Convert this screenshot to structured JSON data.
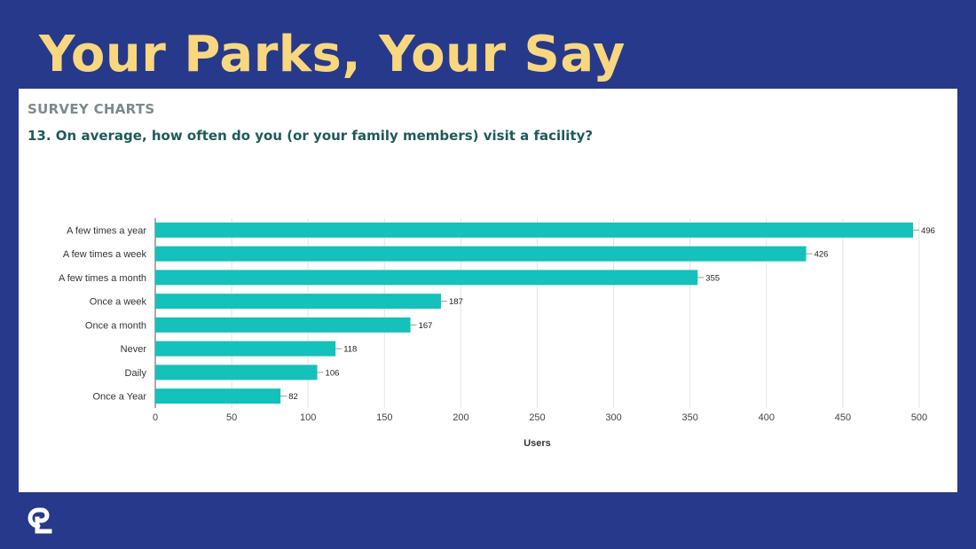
{
  "slide": {
    "title": "Your Parks, Your Say",
    "section_label": "SURVEY CHARTS",
    "question": "13. On average, how often do you (or your family members) visit a facility?",
    "logo_icon": "cpl-logo-icon"
  },
  "colors": {
    "background": "#27398a",
    "title": "#f9d77e",
    "bar": "#14c1bb",
    "question": "#1f5a59",
    "section_label": "#7d8a8d"
  },
  "chart_data": {
    "type": "bar",
    "orientation": "horizontal",
    "categories": [
      "A few times a year",
      "A few times a week",
      "A few times a month",
      "Once a week",
      "Once a month",
      "Never",
      "Daily",
      "Once a Year"
    ],
    "values": [
      496,
      426,
      355,
      187,
      167,
      118,
      106,
      82
    ],
    "data_labels": [
      "496",
      "426",
      "355",
      "187",
      "167",
      "118",
      "106",
      "82"
    ],
    "xlabel": "Users",
    "ylabel": "",
    "xlim": [
      0,
      500
    ],
    "x_ticks": [
      0,
      50,
      100,
      150,
      200,
      250,
      300,
      350,
      400,
      450,
      500
    ],
    "grid": true,
    "legend": "none"
  }
}
